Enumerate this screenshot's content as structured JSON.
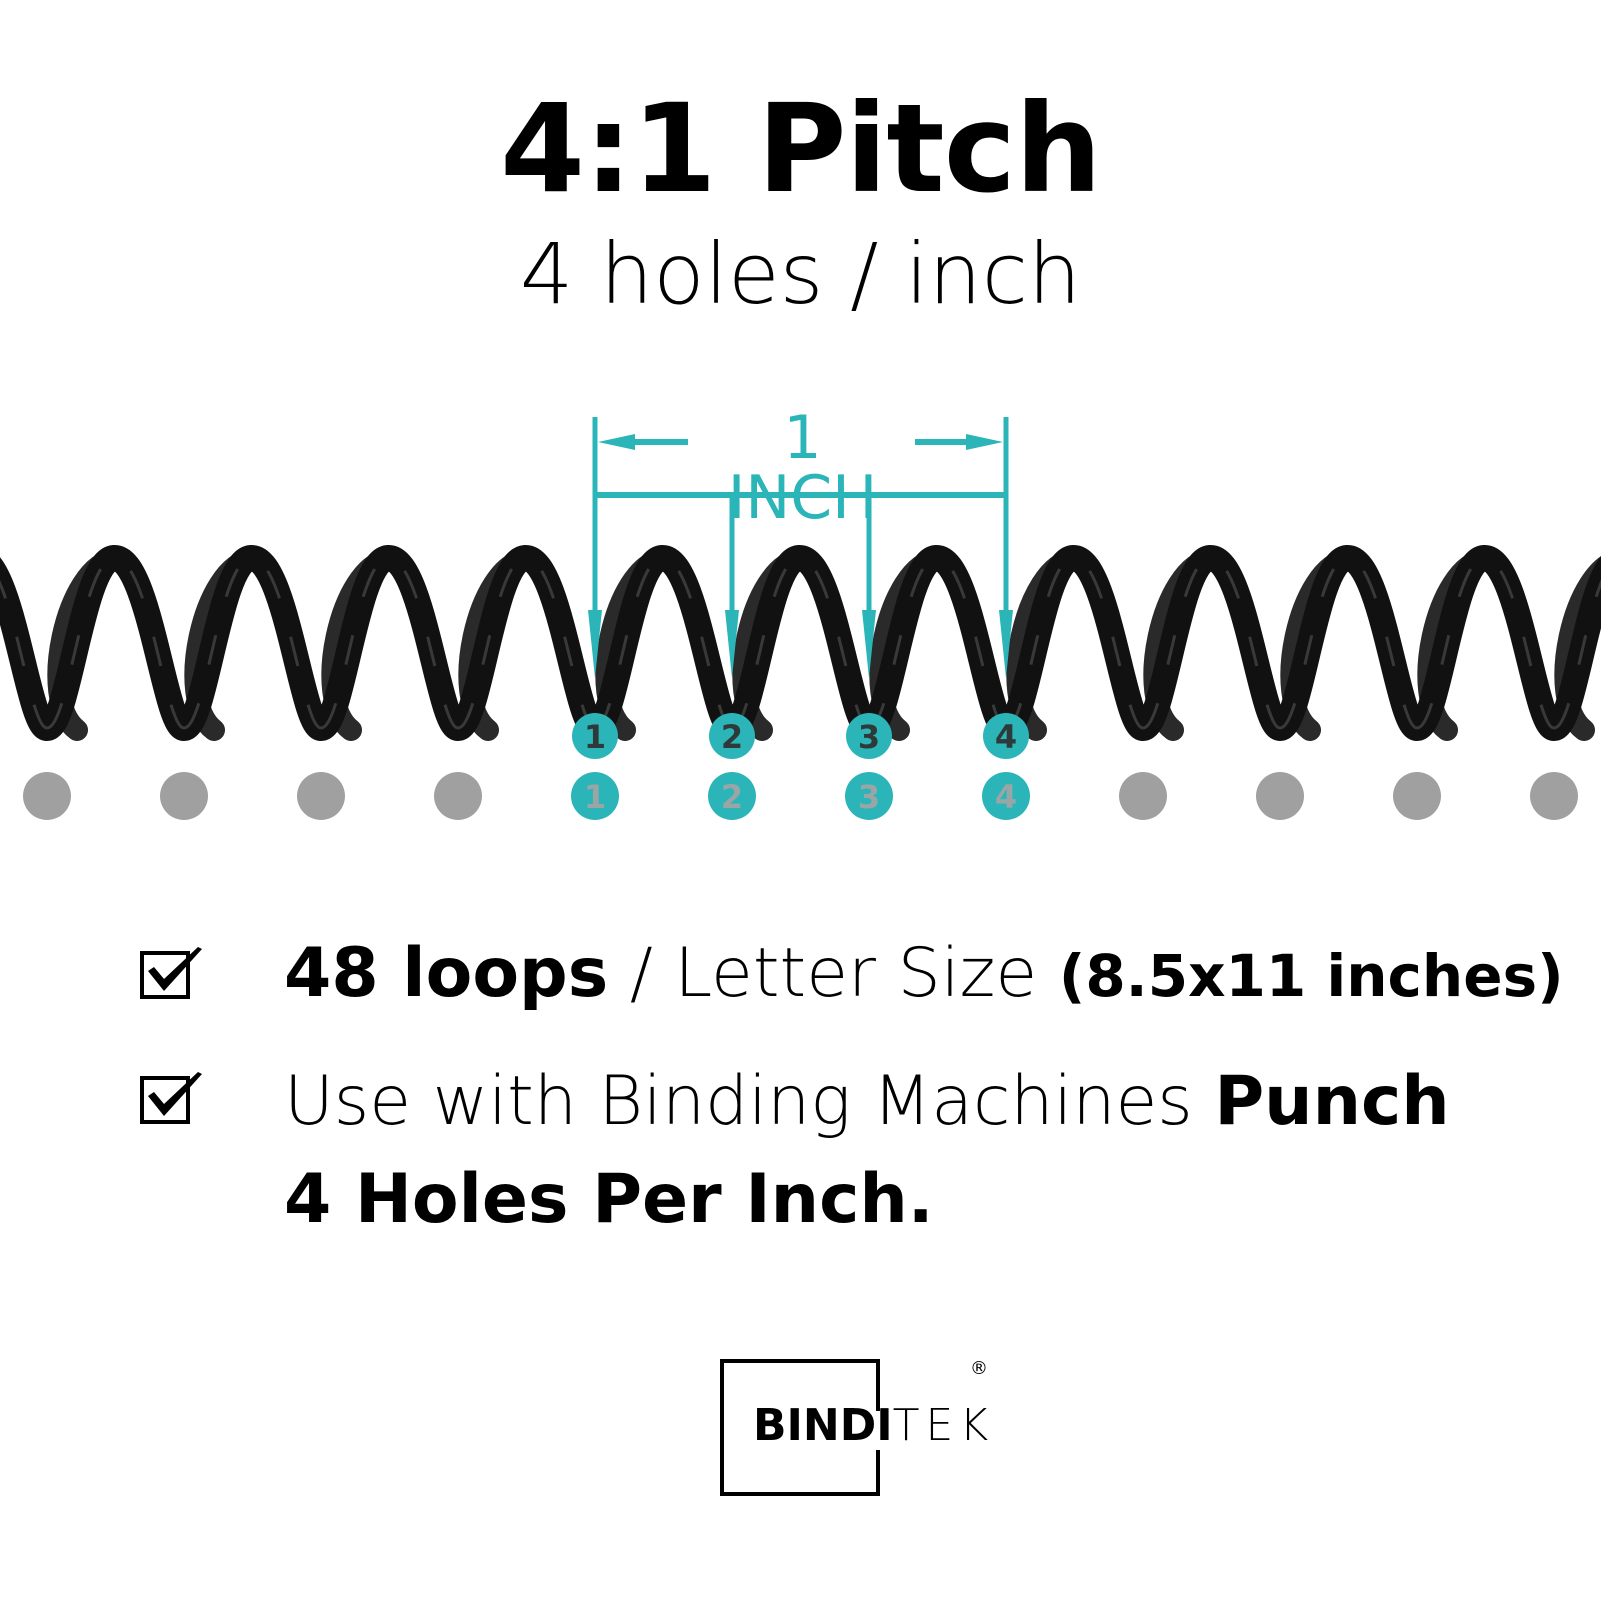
{
  "header": {
    "title": "4:1 Pitch",
    "subtitle": "4 holes / inch"
  },
  "diagram": {
    "dimension_label": "1 INCH",
    "marked_holes": [
      "1",
      "2",
      "3",
      "4"
    ],
    "total_holes_shown": 12,
    "accent_color": "#2BB5B8",
    "hole_color": "#A0A0A0",
    "coil_color": "#111111"
  },
  "features": [
    {
      "icon": "checkbox-checked-icon",
      "bold": "48 loops",
      "sep": " / ",
      "light": "Letter Size ",
      "detail": "(8.5x11 inches)"
    },
    {
      "icon": "checkbox-checked-icon",
      "light": "Use with Binding Machines ",
      "bold": "Punch",
      "line2": "4 Holes Per Inch."
    }
  ],
  "logo": {
    "bold": "BINDI",
    "thin": "TEK",
    "reg": "®"
  }
}
